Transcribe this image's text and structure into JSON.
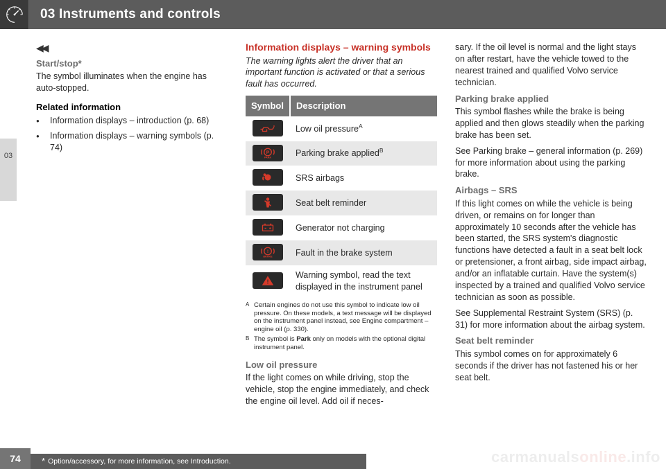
{
  "header": {
    "title": "03 Instruments and controls",
    "side_tab": "03"
  },
  "col1": {
    "start_stop_heading": "Start/stop*",
    "start_stop_body": "The symbol illuminates when the engine has auto-stopped.",
    "related_heading": "Related information",
    "related_items": [
      "Information displays – introduction (p. 68)",
      "Information displays – warning symbols (p. 74)"
    ]
  },
  "col2": {
    "heading": "Information displays – warning symbols",
    "intro": "The warning lights alert the driver that an important function is activated or that a serious fault has occurred.",
    "table": {
      "head_symbol": "Symbol",
      "head_desc": "Description",
      "rows": [
        {
          "icon": "oil",
          "desc": "Low oil pressure",
          "sup": "A",
          "color": "#d63a2a"
        },
        {
          "icon": "park",
          "desc": "Parking brake applied",
          "sup": "B",
          "color": "#d63a2a"
        },
        {
          "icon": "airbag",
          "desc": "SRS airbags",
          "sup": "",
          "color": "#d63a2a"
        },
        {
          "icon": "belt",
          "desc": "Seat belt reminder",
          "sup": "",
          "color": "#d63a2a"
        },
        {
          "icon": "battery",
          "desc": "Generator not charging",
          "sup": "",
          "color": "#d63a2a"
        },
        {
          "icon": "brake",
          "desc": "Fault in the brake system",
          "sup": "",
          "color": "#d63a2a"
        },
        {
          "icon": "warn",
          "desc": "Warning symbol, read the text displayed in the instrument panel",
          "sup": "",
          "color": "#d63a2a"
        }
      ]
    },
    "footnote_a": "Certain engines do not use this symbol to indicate low oil pressure. On these models, a text message will be displayed on the instrument panel instead, see Engine compartment – engine oil (p. 330).",
    "footnote_b_pre": "The symbol is ",
    "footnote_b_bold": "Park",
    "footnote_b_post": " only on models with the optional digital instrument panel.",
    "low_oil_heading": "Low oil pressure",
    "low_oil_body": "If the light comes on while driving, stop the vehicle, stop the engine immediately, and check the engine oil level. Add oil if neces-"
  },
  "col3": {
    "cont_body": "sary. If the oil level is normal and the light stays on after restart, have the vehicle towed to the nearest trained and qualified Volvo service technician.",
    "pb_heading": "Parking brake applied",
    "pb_body1": "This symbol flashes while the brake is being applied and then glows steadily when the parking brake has been set.",
    "pb_body2": "See Parking brake – general information (p. 269) for more information about using the parking brake.",
    "srs_heading": "Airbags – SRS",
    "srs_body1": "If this light comes on while the vehicle is being driven, or remains on for longer than approximately 10 seconds after the vehicle has been started, the SRS system's diagnostic functions have detected a fault in a seat belt lock or pretensioner, a front airbag, side impact airbag, and/or an inflatable curtain. Have the system(s) inspected by a trained and qualified Volvo service technician as soon as possible.",
    "srs_body2": "See Supplemental Restraint System (SRS) (p. 31) for more information about the airbag system.",
    "belt_heading": "Seat belt reminder",
    "belt_body": "This symbol comes on for approximately 6 seconds if the driver has not fastened his or her seat belt."
  },
  "footer": {
    "page_number": "74",
    "note": "Option/accessory, for more information, see Introduction."
  },
  "watermark": {
    "a": "carmanuals",
    "b": "online",
    "c": ".info"
  }
}
